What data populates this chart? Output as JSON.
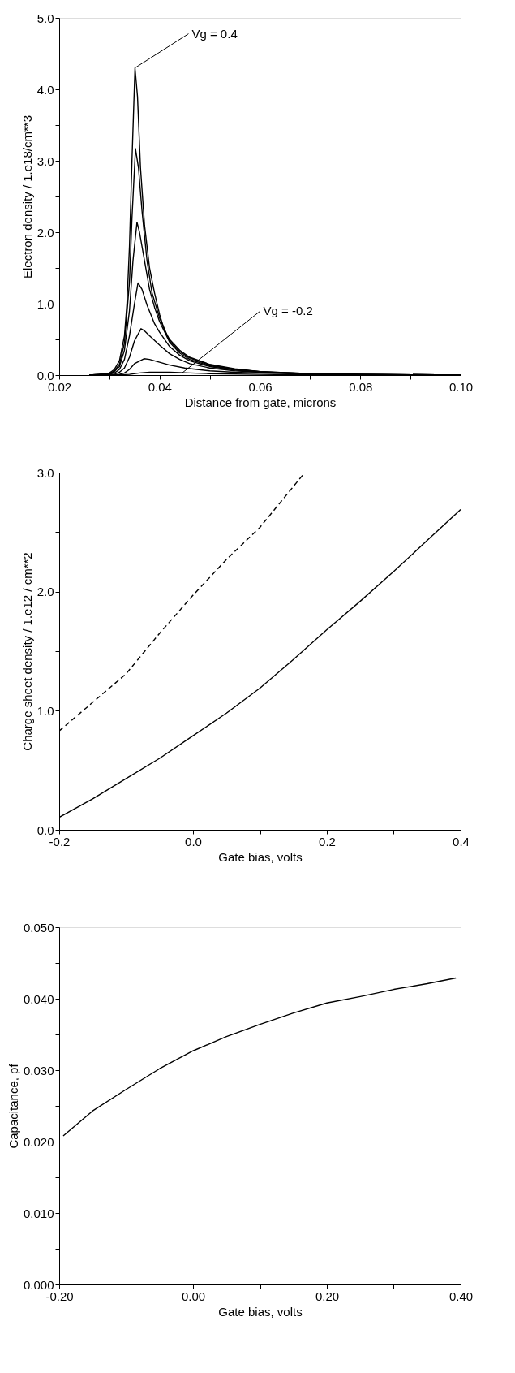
{
  "chart_data": [
    {
      "type": "line",
      "xlabel": "Distance from gate, microns",
      "ylabel": "Electron density / 1.e18/cm**3",
      "xlim": [
        0.02,
        0.1
      ],
      "ylim": [
        0.0,
        5.0
      ],
      "xticks": [
        {
          "value": 0.02,
          "label": "0.02"
        },
        {
          "value": 0.03,
          "label": null
        },
        {
          "value": 0.04,
          "label": "0.04"
        },
        {
          "value": 0.05,
          "label": null
        },
        {
          "value": 0.06,
          "label": "0.06"
        },
        {
          "value": 0.07,
          "label": null
        },
        {
          "value": 0.08,
          "label": "0.08"
        },
        {
          "value": 0.09,
          "label": null
        },
        {
          "value": 0.1,
          "label": "0.10"
        }
      ],
      "yticks": [
        {
          "value": 0,
          "label": "0.0"
        },
        {
          "value": 0.5,
          "label": null
        },
        {
          "value": 1,
          "label": "1.0"
        },
        {
          "value": 1.5,
          "label": null
        },
        {
          "value": 2,
          "label": "2.0"
        },
        {
          "value": 2.5,
          "label": null
        },
        {
          "value": 3,
          "label": "3.0"
        },
        {
          "value": 3.5,
          "label": null
        },
        {
          "value": 4,
          "label": "4.0"
        },
        {
          "value": 4.5,
          "label": null
        },
        {
          "value": 5,
          "label": "5.0"
        }
      ],
      "annotations": [
        {
          "text": "Vg = 0.4",
          "x": 0.0351,
          "y": 4.3
        },
        {
          "text": "Vg = -0.2",
          "x": 0.0445,
          "y": 0.03
        }
      ],
      "series": [
        {
          "color": "#000000",
          "x": [
            0.026,
            0.028,
            0.03,
            0.031,
            0.032,
            0.033,
            0.0335,
            0.034,
            0.0345,
            0.0351,
            0.0356,
            0.0362,
            0.037,
            0.038,
            0.039,
            0.04,
            0.041,
            0.042,
            0.044,
            0.046,
            0.05,
            0.055,
            0.06,
            0.065,
            0.07,
            0.08,
            0.1
          ],
          "values": [
            0,
            0.01,
            0.03,
            0.08,
            0.2,
            0.55,
            1.0,
            1.8,
            3.0,
            4.3,
            3.9,
            2.9,
            2.1,
            1.5,
            1.15,
            0.85,
            0.62,
            0.5,
            0.35,
            0.25,
            0.15,
            0.09,
            0.05,
            0.03,
            0.02,
            0.01,
            0
          ]
        },
        {
          "color": "#000000",
          "x": [
            0.026,
            0.028,
            0.03,
            0.031,
            0.032,
            0.033,
            0.034,
            0.0345,
            0.0352,
            0.0358,
            0.0365,
            0.0375,
            0.0385,
            0.04,
            0.042,
            0.044,
            0.046,
            0.05,
            0.055,
            0.06,
            0.07,
            0.08,
            0.1
          ],
          "values": [
            0,
            0.01,
            0.02,
            0.06,
            0.15,
            0.45,
            1.3,
            2.2,
            3.17,
            2.9,
            2.3,
            1.6,
            1.15,
            0.8,
            0.48,
            0.33,
            0.24,
            0.14,
            0.08,
            0.05,
            0.02,
            0.01,
            0
          ]
        },
        {
          "color": "#000000",
          "x": [
            0.026,
            0.03,
            0.031,
            0.032,
            0.033,
            0.034,
            0.0347,
            0.0355,
            0.036,
            0.037,
            0.038,
            0.039,
            0.04,
            0.042,
            0.044,
            0.046,
            0.05,
            0.055,
            0.06,
            0.07,
            0.08,
            0.1
          ],
          "values": [
            0,
            0.02,
            0.05,
            0.12,
            0.35,
            0.9,
            1.6,
            2.14,
            2.0,
            1.6,
            1.2,
            0.95,
            0.75,
            0.46,
            0.31,
            0.22,
            0.13,
            0.08,
            0.05,
            0.02,
            0.01,
            0
          ]
        },
        {
          "color": "#000000",
          "x": [
            0.026,
            0.03,
            0.031,
            0.032,
            0.033,
            0.034,
            0.035,
            0.0357,
            0.0365,
            0.0375,
            0.039,
            0.04,
            0.042,
            0.044,
            0.046,
            0.05,
            0.055,
            0.06,
            0.07,
            0.08,
            0.1
          ],
          "values": [
            0,
            0.01,
            0.03,
            0.08,
            0.22,
            0.55,
            1.0,
            1.29,
            1.2,
            0.98,
            0.72,
            0.6,
            0.4,
            0.28,
            0.2,
            0.12,
            0.07,
            0.04,
            0.02,
            0.01,
            0
          ]
        },
        {
          "color": "#000000",
          "x": [
            0.026,
            0.031,
            0.032,
            0.033,
            0.034,
            0.035,
            0.0363,
            0.037,
            0.038,
            0.04,
            0.042,
            0.044,
            0.046,
            0.05,
            0.055,
            0.06,
            0.07,
            0.08,
            0.1
          ],
          "values": [
            0,
            0.01,
            0.04,
            0.1,
            0.25,
            0.48,
            0.65,
            0.62,
            0.55,
            0.42,
            0.3,
            0.22,
            0.16,
            0.1,
            0.06,
            0.04,
            0.02,
            0.01,
            0
          ]
        },
        {
          "color": "#000000",
          "x": [
            0.0285,
            0.032,
            0.033,
            0.034,
            0.035,
            0.0369,
            0.038,
            0.04,
            0.042,
            0.045,
            0.05,
            0.055,
            0.06,
            0.07,
            0.085
          ],
          "values": [
            0,
            0.01,
            0.03,
            0.08,
            0.16,
            0.23,
            0.22,
            0.18,
            0.14,
            0.1,
            0.06,
            0.04,
            0.03,
            0.01,
            0
          ]
        },
        {
          "color": "#000000",
          "x": [
            0.03,
            0.034,
            0.036,
            0.038,
            0.042,
            0.046,
            0.05,
            0.06,
            0.075
          ],
          "values": [
            0,
            0.01,
            0.03,
            0.04,
            0.04,
            0.03,
            0.02,
            0.01,
            0
          ]
        }
      ]
    },
    {
      "type": "line",
      "xlabel": "Gate bias, volts",
      "ylabel": "Charge sheet density / 1.e12 / cm**2",
      "xlim": [
        -0.2,
        0.4
      ],
      "ylim": [
        0.0,
        3.0
      ],
      "xticks": [
        {
          "value": -0.2,
          "label": "-0.2"
        },
        {
          "value": -0.1,
          "label": null
        },
        {
          "value": 0,
          "label": "0.0"
        },
        {
          "value": 0.1,
          "label": null
        },
        {
          "value": 0.2,
          "label": "0.2"
        },
        {
          "value": 0.3,
          "label": null
        },
        {
          "value": 0.4,
          "label": "0.4"
        }
      ],
      "yticks": [
        {
          "value": 0,
          "label": "0.0"
        },
        {
          "value": 0.5,
          "label": null
        },
        {
          "value": 1,
          "label": "1.0"
        },
        {
          "value": 1.5,
          "label": null
        },
        {
          "value": 2,
          "label": "2.0"
        },
        {
          "value": 2.5,
          "label": null
        },
        {
          "value": 3,
          "label": "3.0"
        }
      ],
      "series": [
        {
          "color": "#000000",
          "x": [
            -0.2,
            -0.15,
            -0.1,
            -0.05,
            0.0,
            0.05,
            0.1,
            0.15,
            0.2,
            0.25,
            0.3,
            0.35,
            0.4
          ],
          "values": [
            0.105,
            0.26,
            0.43,
            0.6,
            0.79,
            0.98,
            1.19,
            1.43,
            1.68,
            1.92,
            2.17,
            2.43,
            2.69
          ]
        },
        {
          "color": "#000000",
          "line_style": "dashed",
          "x": [
            -0.2,
            -0.15,
            -0.1,
            -0.05,
            0.0,
            0.05,
            0.1,
            0.167
          ],
          "values": [
            0.83,
            1.07,
            1.31,
            1.65,
            1.97,
            2.27,
            2.54,
            3.0
          ]
        }
      ]
    },
    {
      "type": "line",
      "xlabel": "Gate bias, volts",
      "ylabel": "Capacitance, pf",
      "xlim": [
        -0.2,
        0.4
      ],
      "ylim": [
        0.0,
        0.05
      ],
      "xticks": [
        {
          "value": -0.2,
          "label": "-0.20"
        },
        {
          "value": -0.1,
          "label": null
        },
        {
          "value": 0,
          "label": "0.00"
        },
        {
          "value": 0.1,
          "label": null
        },
        {
          "value": 0.2,
          "label": "0.20"
        },
        {
          "value": 0.3,
          "label": null
        },
        {
          "value": 0.4,
          "label": "0.40"
        }
      ],
      "yticks": [
        {
          "value": 0,
          "label": "0.000"
        },
        {
          "value": 0.005,
          "label": null
        },
        {
          "value": 0.01,
          "label": "0.010"
        },
        {
          "value": 0.015,
          "label": null
        },
        {
          "value": 0.02,
          "label": "0.020"
        },
        {
          "value": 0.025,
          "label": null
        },
        {
          "value": 0.03,
          "label": "0.030"
        },
        {
          "value": 0.035,
          "label": null
        },
        {
          "value": 0.04,
          "label": "0.040"
        },
        {
          "value": 0.045,
          "label": null
        },
        {
          "value": 0.05,
          "label": "0.050"
        }
      ],
      "series": [
        {
          "color": "#000000",
          "x": [
            -0.194,
            -0.15,
            -0.1,
            -0.05,
            0.0,
            0.05,
            0.1,
            0.15,
            0.2,
            0.25,
            0.3,
            0.35,
            0.393
          ],
          "values": [
            0.0208,
            0.0243,
            0.0273,
            0.0302,
            0.0327,
            0.0347,
            0.0364,
            0.038,
            0.0394,
            0.0403,
            0.0413,
            0.0421,
            0.0429
          ]
        }
      ]
    }
  ]
}
